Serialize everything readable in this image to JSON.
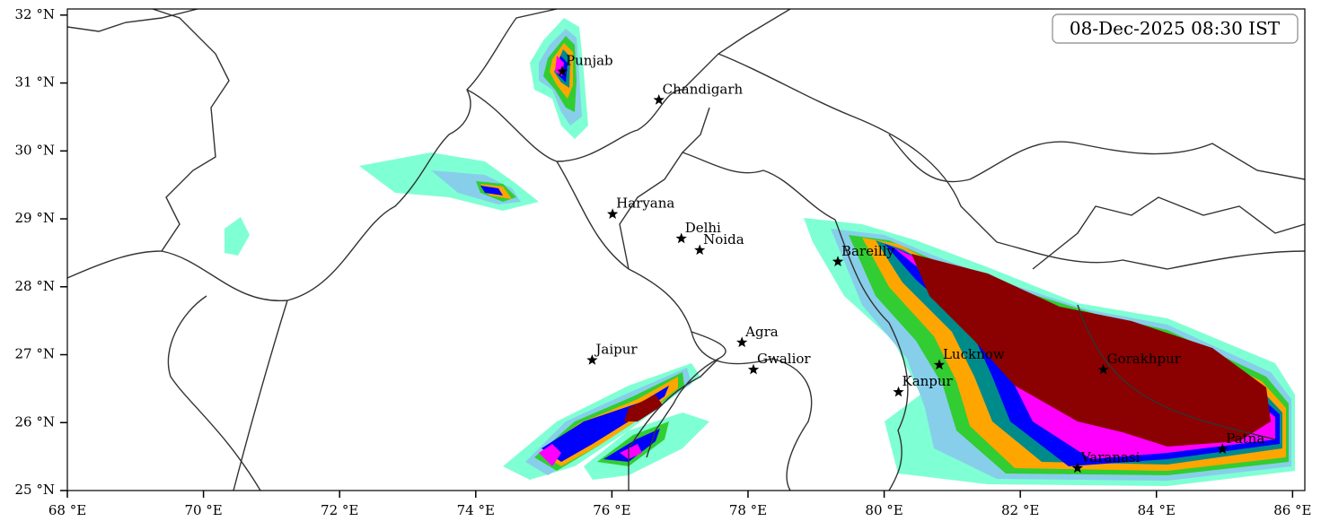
{
  "title": "08-Dec-2025 08:30 IST",
  "xlim": [
    68,
    86.18
  ],
  "ylim": [
    25,
    32.09
  ],
  "xticks": [
    {
      "value": 68,
      "label": "68 °E"
    },
    {
      "value": 70,
      "label": "70 °E"
    },
    {
      "value": 72,
      "label": "72 °E"
    },
    {
      "value": 74,
      "label": "74 °E"
    },
    {
      "value": 76,
      "label": "76 °E"
    },
    {
      "value": 78,
      "label": "78 °E"
    },
    {
      "value": 80,
      "label": "80 °E"
    },
    {
      "value": 82,
      "label": "82 °E"
    },
    {
      "value": 84,
      "label": "84 °E"
    },
    {
      "value": 86,
      "label": "86 °E"
    }
  ],
  "yticks": [
    {
      "value": 25,
      "label": "25 °N"
    },
    {
      "value": 26,
      "label": "26 °N"
    },
    {
      "value": 27,
      "label": "27 °N"
    },
    {
      "value": 28,
      "label": "28 °N"
    },
    {
      "value": 29,
      "label": "29 °N"
    },
    {
      "value": 30,
      "label": "30 °N"
    },
    {
      "value": 31,
      "label": "31 °N"
    },
    {
      "value": 32,
      "label": "32 °N"
    }
  ],
  "cities": [
    {
      "name": "Punjab",
      "lon": 75.27,
      "lat": 31.17
    },
    {
      "name": "Chandigarh",
      "lon": 76.69,
      "lat": 30.75
    },
    {
      "name": "Haryana",
      "lon": 76.01,
      "lat": 29.07
    },
    {
      "name": "Delhi",
      "lon": 77.02,
      "lat": 28.71
    },
    {
      "name": "Noida",
      "lon": 77.29,
      "lat": 28.54
    },
    {
      "name": "Bareilly",
      "lon": 79.32,
      "lat": 28.37
    },
    {
      "name": "Agra",
      "lon": 77.91,
      "lat": 27.18
    },
    {
      "name": "Jaipur",
      "lon": 75.71,
      "lat": 26.92
    },
    {
      "name": "Gwalior",
      "lon": 78.08,
      "lat": 26.78
    },
    {
      "name": "Lucknow",
      "lon": 80.81,
      "lat": 26.85
    },
    {
      "name": "Kanpur",
      "lon": 80.21,
      "lat": 26.45
    },
    {
      "name": "Gorakhpur",
      "lon": 83.22,
      "lat": 26.78
    },
    {
      "name": "Varanasi",
      "lon": 82.84,
      "lat": 25.33
    },
    {
      "name": "Patna",
      "lon": 84.97,
      "lat": 25.61
    }
  ]
}
